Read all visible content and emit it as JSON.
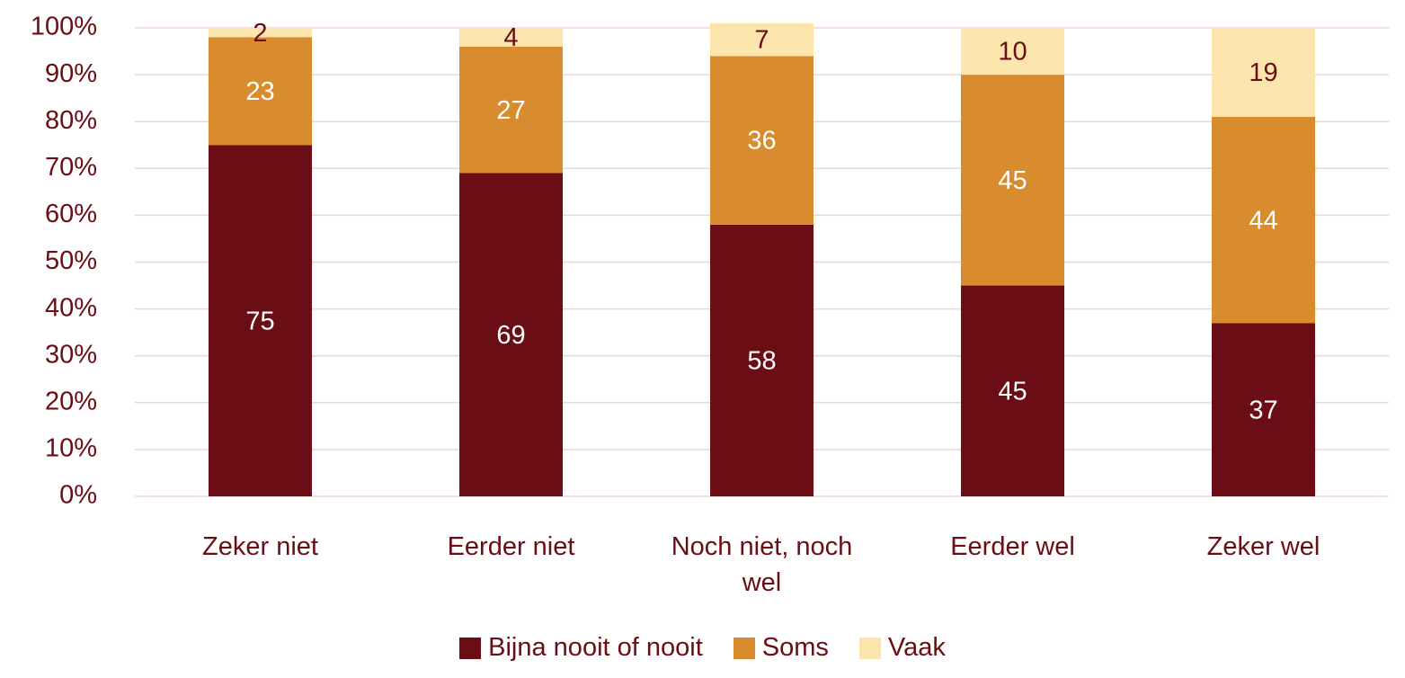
{
  "chart_data": {
    "type": "stacked_bar",
    "categories": [
      "Zeker niet",
      "Eerder niet",
      "Noch niet, noch wel",
      "Eerder wel",
      "Zeker wel"
    ],
    "series": [
      {
        "name": "Bijna nooit of nooit",
        "color": "#6b0d14",
        "values": [
          75,
          69,
          58,
          45,
          37
        ]
      },
      {
        "name": "Soms",
        "color": "#d88c2e",
        "values": [
          23,
          27,
          36,
          45,
          44
        ]
      },
      {
        "name": "Vaak",
        "color": "#fde5ae",
        "values": [
          2,
          4,
          7,
          10,
          19
        ]
      }
    ],
    "ylim": [
      0,
      100
    ],
    "yticks": [
      {
        "value": 0,
        "label": "0%"
      },
      {
        "value": 10,
        "label": "10%"
      },
      {
        "value": 20,
        "label": "20%"
      },
      {
        "value": 30,
        "label": "30%"
      },
      {
        "value": 40,
        "label": "40%"
      },
      {
        "value": 50,
        "label": "50%"
      },
      {
        "value": 60,
        "label": "60%"
      },
      {
        "value": 70,
        "label": "70%"
      },
      {
        "value": 80,
        "label": "80%"
      },
      {
        "value": 90,
        "label": "90%"
      },
      {
        "value": 100,
        "label": "100%"
      }
    ],
    "grid": true,
    "legend": "bottom"
  }
}
